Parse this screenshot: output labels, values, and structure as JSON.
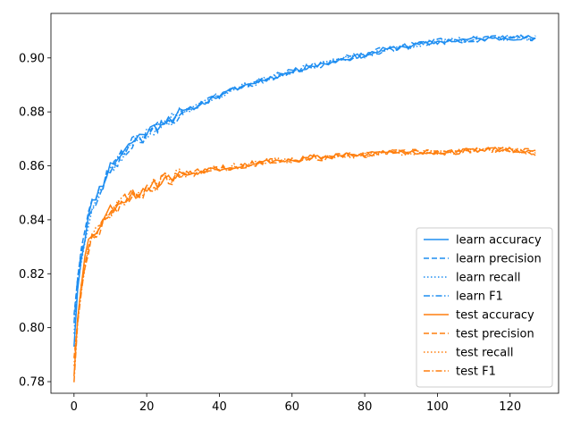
{
  "chart_data": {
    "type": "line",
    "title": "",
    "xlabel": "",
    "ylabel": "",
    "xlim": [
      -6.35,
      133.35
    ],
    "ylim": [
      0.7757,
      0.9165
    ],
    "xticks": [
      0,
      20,
      40,
      60,
      80,
      100,
      120
    ],
    "xtick_labels": [
      "0",
      "20",
      "40",
      "60",
      "80",
      "100",
      "120"
    ],
    "yticks": [
      0.78,
      0.8,
      0.82,
      0.84,
      0.86,
      0.88,
      0.9
    ],
    "ytick_labels": [
      "0.78",
      "0.80",
      "0.82",
      "0.84",
      "0.86",
      "0.88",
      "0.90"
    ],
    "grid": false,
    "legend_placement": "lower-right",
    "colors": {
      "learn": "#1f8ef1",
      "test": "#ff7f0e"
    },
    "anchors_x": [
      0,
      1,
      2,
      3,
      4,
      5,
      6,
      8,
      10,
      12,
      14,
      16,
      18,
      20,
      22,
      25,
      28,
      30,
      32,
      35,
      38,
      40,
      45,
      50,
      55,
      60,
      65,
      70,
      75,
      80,
      85,
      90,
      95,
      100,
      105,
      110,
      115,
      120,
      127
    ],
    "series": [
      {
        "name": "learn accuracy",
        "group": "learn",
        "dash": "solid",
        "noise_amp": 0.0009,
        "seed": 11,
        "y": [
          0.794,
          0.815,
          0.826,
          0.834,
          0.841,
          0.846,
          0.849,
          0.854,
          0.86,
          0.863,
          0.866,
          0.869,
          0.871,
          0.873,
          0.874,
          0.877,
          0.879,
          0.88,
          0.881,
          0.883,
          0.885,
          0.886,
          0.889,
          0.891,
          0.893,
          0.895,
          0.897,
          0.898,
          0.9,
          0.901,
          0.903,
          0.904,
          0.905,
          0.906,
          0.9065,
          0.907,
          0.907,
          0.9075,
          0.9075
        ]
      },
      {
        "name": "learn precision",
        "group": "learn",
        "dash": "dashed",
        "noise_amp": 0.0012,
        "seed": 23,
        "y": [
          0.806,
          0.819,
          0.829,
          0.836,
          0.842,
          0.846,
          0.849,
          0.853,
          0.859,
          0.862,
          0.865,
          0.868,
          0.87,
          0.872,
          0.873,
          0.876,
          0.878,
          0.88,
          0.881,
          0.883,
          0.885,
          0.886,
          0.889,
          0.891,
          0.893,
          0.895,
          0.897,
          0.898,
          0.9,
          0.901,
          0.903,
          0.904,
          0.905,
          0.906,
          0.9065,
          0.907,
          0.907,
          0.9075,
          0.9075
        ]
      },
      {
        "name": "learn recall",
        "group": "learn",
        "dash": "dotted",
        "noise_amp": 0.0011,
        "seed": 37,
        "y": [
          0.799,
          0.815,
          0.826,
          0.834,
          0.84,
          0.845,
          0.848,
          0.853,
          0.859,
          0.862,
          0.865,
          0.868,
          0.87,
          0.872,
          0.873,
          0.876,
          0.878,
          0.88,
          0.881,
          0.883,
          0.885,
          0.886,
          0.889,
          0.891,
          0.893,
          0.895,
          0.897,
          0.898,
          0.9,
          0.901,
          0.903,
          0.904,
          0.905,
          0.906,
          0.9065,
          0.907,
          0.907,
          0.9075,
          0.9075
        ]
      },
      {
        "name": "learn F1",
        "group": "learn",
        "dash": "dashdot",
        "noise_amp": 0.0012,
        "seed": 41,
        "y": [
          0.803,
          0.816,
          0.826,
          0.834,
          0.84,
          0.845,
          0.848,
          0.853,
          0.858,
          0.862,
          0.865,
          0.868,
          0.87,
          0.872,
          0.873,
          0.876,
          0.878,
          0.88,
          0.881,
          0.883,
          0.885,
          0.886,
          0.889,
          0.891,
          0.893,
          0.895,
          0.897,
          0.898,
          0.9,
          0.901,
          0.903,
          0.904,
          0.905,
          0.906,
          0.9065,
          0.907,
          0.907,
          0.9075,
          0.9075
        ]
      },
      {
        "name": "test accuracy",
        "group": "test",
        "dash": "solid",
        "noise_amp": 0.0009,
        "seed": 53,
        "y": [
          0.783,
          0.805,
          0.817,
          0.826,
          0.832,
          0.835,
          0.836,
          0.84,
          0.844,
          0.846,
          0.848,
          0.849,
          0.85,
          0.852,
          0.853,
          0.855,
          0.856,
          0.857,
          0.857,
          0.858,
          0.859,
          0.859,
          0.86,
          0.861,
          0.862,
          0.862,
          0.863,
          0.863,
          0.864,
          0.864,
          0.865,
          0.865,
          0.865,
          0.865,
          0.865,
          0.866,
          0.866,
          0.866,
          0.865
        ]
      },
      {
        "name": "test precision",
        "group": "test",
        "dash": "dashed",
        "noise_amp": 0.0012,
        "seed": 67,
        "y": [
          0.79,
          0.803,
          0.815,
          0.824,
          0.83,
          0.834,
          0.835,
          0.839,
          0.843,
          0.845,
          0.847,
          0.849,
          0.85,
          0.851,
          0.853,
          0.855,
          0.856,
          0.857,
          0.857,
          0.858,
          0.859,
          0.859,
          0.86,
          0.861,
          0.862,
          0.862,
          0.863,
          0.863,
          0.864,
          0.864,
          0.865,
          0.865,
          0.865,
          0.865,
          0.865,
          0.866,
          0.866,
          0.866,
          0.865
        ]
      },
      {
        "name": "test recall",
        "group": "test",
        "dash": "dotted",
        "noise_amp": 0.0011,
        "seed": 71,
        "y": [
          0.787,
          0.802,
          0.814,
          0.823,
          0.829,
          0.833,
          0.835,
          0.839,
          0.843,
          0.845,
          0.847,
          0.849,
          0.85,
          0.851,
          0.853,
          0.855,
          0.856,
          0.857,
          0.857,
          0.858,
          0.859,
          0.859,
          0.86,
          0.861,
          0.862,
          0.862,
          0.863,
          0.863,
          0.864,
          0.864,
          0.865,
          0.865,
          0.865,
          0.865,
          0.865,
          0.866,
          0.866,
          0.866,
          0.865
        ]
      },
      {
        "name": "test F1",
        "group": "test",
        "dash": "dashdot",
        "noise_amp": 0.0012,
        "seed": 83,
        "y": [
          0.781,
          0.8,
          0.812,
          0.822,
          0.829,
          0.833,
          0.835,
          0.839,
          0.843,
          0.845,
          0.847,
          0.849,
          0.85,
          0.851,
          0.853,
          0.855,
          0.856,
          0.857,
          0.857,
          0.858,
          0.859,
          0.859,
          0.86,
          0.861,
          0.862,
          0.862,
          0.863,
          0.863,
          0.864,
          0.864,
          0.865,
          0.865,
          0.865,
          0.865,
          0.865,
          0.866,
          0.866,
          0.866,
          0.865
        ]
      }
    ]
  }
}
